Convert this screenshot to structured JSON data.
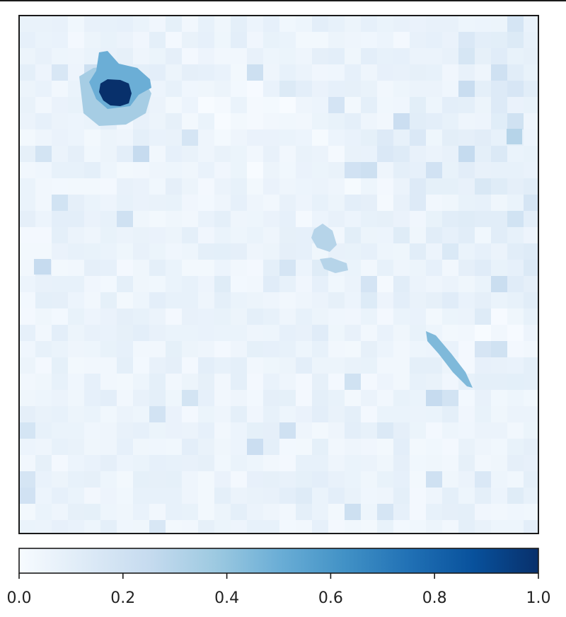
{
  "chart_data": {
    "type": "heatmap",
    "title": "",
    "xlabel": "",
    "ylabel": "",
    "colormap": "Blues",
    "colormap_stops": [
      "#f7fbff",
      "#deebf7",
      "#c6dbef",
      "#9ecae1",
      "#6baed6",
      "#4292c6",
      "#2171b5",
      "#08519c",
      "#08306b"
    ],
    "value_range": [
      0.0,
      1.0
    ],
    "grid": false,
    "axes_ticks_visible": false,
    "regions": [
      {
        "name": "peak-core",
        "value": 1.0
      },
      {
        "name": "peak-halo",
        "value": 0.5
      },
      {
        "name": "peak-surround",
        "value": 0.35
      },
      {
        "name": "diagonal-ridge",
        "value": 0.45
      },
      {
        "name": "ridge-mid",
        "value": 0.3
      },
      {
        "name": "ridge-upper",
        "value": 0.3
      },
      {
        "name": "square-east",
        "value": 0.3
      },
      {
        "name": "square-west",
        "value": 0.25
      }
    ],
    "colorbar": {
      "orientation": "horizontal",
      "range": [
        0.0,
        1.0
      ],
      "ticks": [
        0.0,
        0.2,
        0.4,
        0.6,
        0.8,
        1.0
      ],
      "tick_labels": [
        "0.0",
        "0.2",
        "0.4",
        "0.6",
        "0.8",
        "1.0"
      ]
    }
  }
}
